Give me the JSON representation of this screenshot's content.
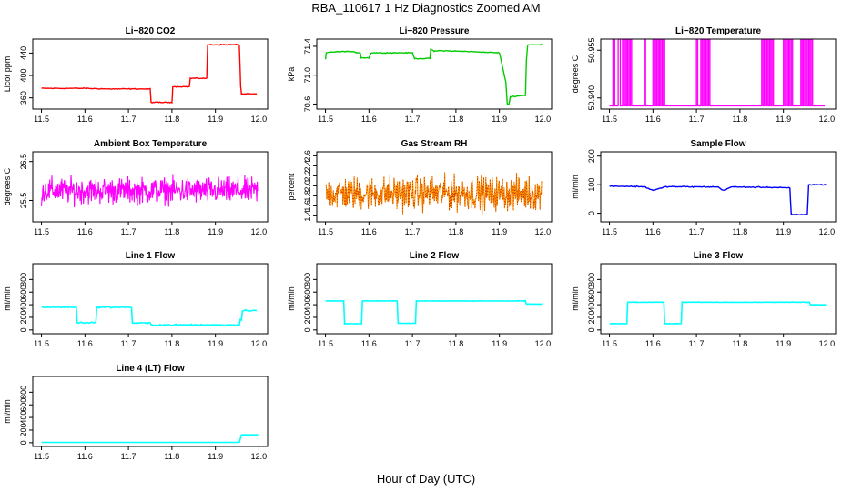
{
  "figure": {
    "title": "RBA_110617  1 Hz Diagnostics Zoomed AM",
    "xlabel": "Hour of Day (UTC)"
  },
  "chart_data": [
    {
      "type": "line",
      "title": "Li−820 CO2",
      "ylabel": "Licor ppm",
      "color": "#ff0000",
      "xlim": [
        11.48,
        12.02
      ],
      "ylim": [
        340,
        465
      ],
      "xticks": [
        "11.5",
        "11.6",
        "11.7",
        "11.8",
        "11.9",
        "12.0"
      ],
      "yticks": [
        "360",
        "400",
        "440"
      ],
      "noise": 1.2,
      "series": [
        {
          "x": [
            11.5,
            11.6,
            11.65,
            11.7,
            11.75,
            11.752,
            11.8,
            11.802,
            11.84,
            11.842,
            11.88,
            11.882,
            11.955,
            11.958,
            11.96,
            11.995
          ],
          "y": [
            377,
            377,
            376,
            376,
            376,
            352,
            352,
            380,
            380,
            395,
            395,
            455,
            455,
            380,
            367,
            367
          ]
        }
      ]
    },
    {
      "type": "line",
      "title": "Li−820 Pressure",
      "ylabel": "kPa",
      "color": "#00cc00",
      "xlim": [
        11.48,
        12.02
      ],
      "ylim": [
        70.53,
        71.5
      ],
      "xticks": [
        "11.5",
        "11.6",
        "11.7",
        "11.8",
        "11.9",
        "12.0"
      ],
      "yticks": [
        "70.6",
        "71.0",
        "71.4"
      ],
      "noise": 0.008,
      "series": [
        {
          "x": [
            11.5,
            11.502,
            11.51,
            11.55,
            11.58,
            11.582,
            11.6,
            11.605,
            11.7,
            11.705,
            11.74,
            11.742,
            11.75,
            11.76,
            11.82,
            11.9,
            11.915,
            11.918,
            11.922,
            11.925,
            11.955,
            11.96,
            11.962,
            11.965,
            11.97,
            12.0
          ],
          "y": [
            71.22,
            71.31,
            71.32,
            71.33,
            71.31,
            71.24,
            71.24,
            71.31,
            71.31,
            71.23,
            71.23,
            71.36,
            71.33,
            71.34,
            71.33,
            71.31,
            70.9,
            70.6,
            70.6,
            70.7,
            70.72,
            70.72,
            71.2,
            71.42,
            71.42,
            71.42
          ]
        }
      ]
    },
    {
      "type": "line",
      "title": "Li−820 Temperature",
      "ylabel": "degrees C",
      "color": "#ff00ff",
      "xlim": [
        11.48,
        12.02
      ],
      "ylim": [
        50.9365,
        50.9585
      ],
      "xticks": [
        "11.5",
        "11.6",
        "11.7",
        "11.8",
        "11.9",
        "12.0"
      ],
      "yticks": [
        "50.940",
        "50.955"
      ],
      "baseline": 50.9375,
      "high": 50.9585,
      "switches": [
        11.508,
        11.512,
        11.52,
        11.525,
        11.53,
        11.533,
        11.536,
        11.539,
        11.542,
        11.545,
        11.548,
        11.551,
        11.58,
        11.583,
        11.6,
        11.603,
        11.606,
        11.609,
        11.612,
        11.615,
        11.618,
        11.621,
        11.624,
        11.627,
        11.7,
        11.703,
        11.71,
        11.713,
        11.716,
        11.719,
        11.722,
        11.725,
        11.728,
        11.731,
        11.85,
        11.853,
        11.856,
        11.859,
        11.862,
        11.865,
        11.868,
        11.871,
        11.874,
        11.877,
        11.9,
        11.903,
        11.906,
        11.909,
        11.912,
        11.915,
        11.918,
        11.921,
        11.94,
        11.943,
        11.946,
        11.949,
        11.952,
        11.955,
        11.958,
        11.961,
        11.964,
        11.967
      ]
    },
    {
      "type": "line",
      "title": "Ambient Box Temperature",
      "ylabel": "degrees C",
      "color": "#ff00ff",
      "xlim": [
        11.48,
        12.02
      ],
      "ylim": [
        24.95,
        26.75
      ],
      "xticks": [
        "11.5",
        "11.6",
        "11.7",
        "11.8",
        "11.9",
        "12.0"
      ],
      "yticks": [
        "25.5",
        "26.5"
      ],
      "center": 25.75,
      "spread": 0.55
    },
    {
      "type": "line",
      "title": "Gas Stream RH",
      "ylabel": "percent",
      "color": "#ff9900",
      "dotcolor": "#cc3300",
      "xlim": [
        11.48,
        12.02
      ],
      "ylim": [
        1.28,
        2.68
      ],
      "xticks": [
        "11.5",
        "11.6",
        "11.7",
        "11.8",
        "11.9",
        "12.0"
      ],
      "yticks": [
        "1.4",
        "1.6",
        "1.8",
        "2.0",
        "2.2",
        "2.4",
        "2.6"
      ],
      "center": 1.85,
      "spread": 0.55
    },
    {
      "type": "line",
      "title": "Sample Flow",
      "ylabel": "ml/min",
      "color": "#0000ff",
      "xlim": [
        11.48,
        12.02
      ],
      "ylim": [
        -30,
        215
      ],
      "xticks": [
        "11.5",
        "11.6",
        "11.7",
        "11.8",
        "11.9",
        "12.0"
      ],
      "yticks": [
        "0",
        "100",
        "200"
      ],
      "noise": 2.5,
      "series": [
        {
          "x": [
            11.5,
            11.58,
            11.6,
            11.61,
            11.63,
            11.75,
            11.76,
            11.77,
            11.78,
            11.9,
            11.915,
            11.918,
            11.955,
            11.958,
            12.0
          ],
          "y": [
            95,
            93,
            80,
            84,
            93,
            92,
            80,
            85,
            92,
            90,
            88,
            -5,
            -5,
            100,
            100
          ]
        }
      ]
    },
    {
      "type": "line",
      "title": "Line 1 Flow",
      "ylabel": "ml/min",
      "color": "#00ffff",
      "xlim": [
        11.48,
        12.02
      ],
      "ylim": [
        -60,
        1050
      ],
      "xticks": [
        "11.5",
        "11.6",
        "11.7",
        "11.8",
        "11.9",
        "12.0"
      ],
      "yticks": [
        "0",
        "200",
        "400",
        "600",
        "800"
      ],
      "noise": 15,
      "series": [
        {
          "x": [
            11.5,
            11.58,
            11.582,
            11.625,
            11.627,
            11.707,
            11.709,
            11.75,
            11.752,
            11.955,
            11.957,
            11.96,
            11.962,
            11.995
          ],
          "y": [
            360,
            360,
            115,
            115,
            360,
            360,
            110,
            110,
            80,
            80,
            160,
            160,
            310,
            310
          ]
        }
      ]
    },
    {
      "type": "line",
      "title": "Line 2 Flow",
      "ylabel": "ml/min",
      "color": "#00ffff",
      "xlim": [
        11.48,
        12.02
      ],
      "ylim": [
        -60,
        1050
      ],
      "xticks": [
        "11.5",
        "11.6",
        "11.7",
        "11.8",
        "11.9",
        "12.0"
      ],
      "yticks": [
        "0",
        "200",
        "400",
        "600",
        "800"
      ],
      "noise": 4,
      "series": [
        {
          "x": [
            11.5,
            11.542,
            11.544,
            11.583,
            11.585,
            11.665,
            11.667,
            11.707,
            11.709,
            11.96,
            11.962,
            11.998
          ],
          "y": [
            460,
            460,
            100,
            100,
            460,
            460,
            105,
            105,
            460,
            460,
            410,
            410
          ]
        }
      ]
    },
    {
      "type": "line",
      "title": "Line 3 Flow",
      "ylabel": "ml/min",
      "color": "#00ffff",
      "xlim": [
        11.48,
        12.02
      ],
      "ylim": [
        -60,
        1050
      ],
      "xticks": [
        "11.5",
        "11.6",
        "11.7",
        "11.8",
        "11.9",
        "12.0"
      ],
      "yticks": [
        "0",
        "200",
        "400",
        "600",
        "800"
      ],
      "noise": 4,
      "series": [
        {
          "x": [
            11.5,
            11.54,
            11.542,
            11.625,
            11.627,
            11.665,
            11.667,
            11.96,
            11.962,
            11.998
          ],
          "y": [
            100,
            100,
            440,
            440,
            100,
            100,
            440,
            440,
            400,
            400
          ]
        }
      ]
    },
    {
      "type": "line",
      "title": "Line 4 (LT) Flow",
      "ylabel": "ml/min",
      "color": "#00ffff",
      "xlim": [
        11.48,
        12.02
      ],
      "ylim": [
        -60,
        1050
      ],
      "xticks": [
        "11.5",
        "11.6",
        "11.7",
        "11.8",
        "11.9",
        "12.0"
      ],
      "yticks": [
        "0",
        "200",
        "400",
        "600",
        "800"
      ],
      "noise": 0,
      "series": [
        {
          "x": [
            11.5,
            11.955,
            11.96,
            11.998
          ],
          "y": [
            5,
            5,
            125,
            125
          ]
        }
      ]
    }
  ]
}
